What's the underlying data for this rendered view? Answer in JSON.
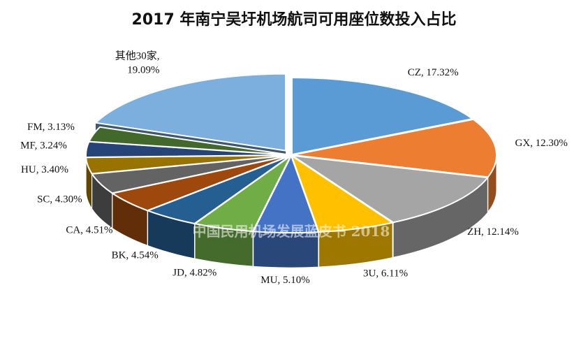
{
  "chart_data": {
    "type": "pie",
    "title": "2017 年南宁吴圩机场航司可用座位数投入占比",
    "watermark": "中国民用机场发展蓝皮书 2018",
    "slices": [
      {
        "name": "CZ",
        "value": 17.32,
        "label_line1": "CZ, 17.32%",
        "label_line2": "",
        "color": "#5b9bd5",
        "explode": false
      },
      {
        "name": "GX",
        "value": 12.3,
        "label_line1": "GX, 12.30%",
        "label_line2": "",
        "color": "#ed7d31",
        "explode": false
      },
      {
        "name": "ZH",
        "value": 12.14,
        "label_line1": "ZH, 12.14%",
        "label_line2": "",
        "color": "#a5a5a5",
        "explode": false
      },
      {
        "name": "3U",
        "value": 6.11,
        "label_line1": "3U, 6.11%",
        "label_line2": "",
        "color": "#ffc000",
        "explode": false
      },
      {
        "name": "MU",
        "value": 5.1,
        "label_line1": "MU, 5.10%",
        "label_line2": "",
        "color": "#4472c4",
        "explode": false
      },
      {
        "name": "JD",
        "value": 4.82,
        "label_line1": "JD, 4.82%",
        "label_line2": "",
        "color": "#70ad47",
        "explode": false
      },
      {
        "name": "BK",
        "value": 4.54,
        "label_line1": "BK, 4.54%",
        "label_line2": "",
        "color": "#255e91",
        "explode": false
      },
      {
        "name": "CA",
        "value": 4.51,
        "label_line1": "CA, 4.51%",
        "label_line2": "",
        "color": "#9e480e",
        "explode": false
      },
      {
        "name": "SC",
        "value": 4.3,
        "label_line1": "SC, 4.30%",
        "label_line2": "",
        "color": "#636363",
        "explode": false
      },
      {
        "name": "HU",
        "value": 3.4,
        "label_line1": "HU, 3.40%",
        "label_line2": "",
        "color": "#997300",
        "explode": false
      },
      {
        "name": "MF",
        "value": 3.24,
        "label_line1": "MF, 3.24%",
        "label_line2": "",
        "color": "#264478",
        "explode": false
      },
      {
        "name": "FM",
        "value": 3.13,
        "label_line1": "FM, 3.13%",
        "label_line2": "",
        "color": "#43682b",
        "explode": false
      },
      {
        "name": "其他30家",
        "value": 19.09,
        "label_line1": "其他30家,",
        "label_line2": "19.09%",
        "color": "#7cafdd",
        "explode": true
      }
    ]
  }
}
